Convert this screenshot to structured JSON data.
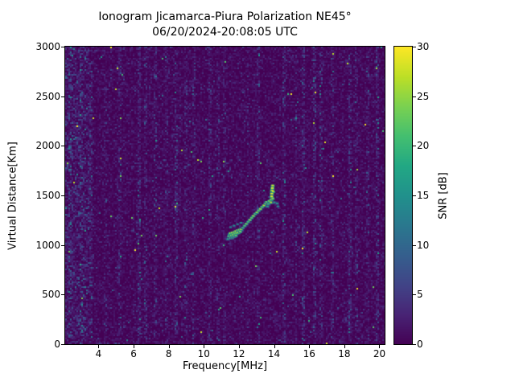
{
  "chart_data": {
    "type": "heatmap",
    "title": "Ionogram Jicamarca-Piura Polarization NE45°",
    "subtitle": "06/20/2024-20:08:05 UTC",
    "xlabel": "Frequency[MHz]",
    "ylabel": "Virtual Distance[Km]",
    "xlim": [
      2.1,
      20.3
    ],
    "ylim": [
      0,
      3000
    ],
    "xticks": [
      4,
      6,
      8,
      10,
      12,
      14,
      16,
      18,
      20
    ],
    "yticks": [
      0,
      500,
      1000,
      1500,
      2000,
      2500,
      3000
    ],
    "grid": false,
    "colorbar": {
      "label": "SNR [dB]",
      "min": 0,
      "max": 30,
      "ticks": [
        0,
        5,
        10,
        15,
        20,
        25,
        30
      ],
      "position": "right"
    },
    "colormap": {
      "name": "viridis",
      "stops": [
        [
          0.0,
          "#440154"
        ],
        [
          0.1,
          "#482475"
        ],
        [
          0.2,
          "#414487"
        ],
        [
          0.3,
          "#355f8d"
        ],
        [
          0.4,
          "#2a788e"
        ],
        [
          0.5,
          "#21918c"
        ],
        [
          0.6,
          "#22a884"
        ],
        [
          0.7,
          "#44bf70"
        ],
        [
          0.8,
          "#7ad151"
        ],
        [
          0.9,
          "#bddf26"
        ],
        [
          1.0,
          "#fde725"
        ]
      ],
      "background_value_color": "#440154"
    },
    "noise": {
      "base_mean_db": 1.0,
      "low_freq_boost_below_mhz": 3.6,
      "low_freq_boost_db": 1.2,
      "speckle_probability": 0.0025,
      "rfi_stripes": [
        {
          "freq": 2.35,
          "mean_db": 3.5,
          "width": 0.1
        },
        {
          "freq": 2.6,
          "mean_db": 2.0,
          "width": 0.08
        },
        {
          "freq": 2.95,
          "mean_db": 3.0,
          "width": 0.08
        },
        {
          "freq": 3.3,
          "mean_db": 1.8,
          "width": 0.08
        },
        {
          "freq": 4.35,
          "mean_db": 1.6,
          "width": 0.08
        },
        {
          "freq": 5.15,
          "mean_db": 1.8,
          "width": 0.08
        },
        {
          "freq": 6.3,
          "mean_db": 2.6,
          "width": 0.08
        },
        {
          "freq": 6.65,
          "mean_db": 2.2,
          "width": 0.08
        },
        {
          "freq": 7.2,
          "mean_db": 2.0,
          "width": 0.08
        },
        {
          "freq": 7.8,
          "mean_db": 1.6,
          "width": 0.08
        },
        {
          "freq": 8.35,
          "mean_db": 2.4,
          "width": 0.08
        },
        {
          "freq": 8.9,
          "mean_db": 1.8,
          "width": 0.08
        },
        {
          "freq": 9.4,
          "mean_db": 1.6,
          "width": 0.08
        },
        {
          "freq": 10.3,
          "mean_db": 2.2,
          "width": 0.08
        },
        {
          "freq": 10.75,
          "mean_db": 1.8,
          "width": 0.08
        },
        {
          "freq": 11.1,
          "mean_db": 1.6,
          "width": 0.08
        },
        {
          "freq": 12.45,
          "mean_db": 1.8,
          "width": 0.08
        },
        {
          "freq": 13.05,
          "mean_db": 2.0,
          "width": 0.08
        },
        {
          "freq": 14.5,
          "mean_db": 2.2,
          "width": 0.08
        },
        {
          "freq": 15.2,
          "mean_db": 1.8,
          "width": 0.08
        },
        {
          "freq": 15.65,
          "mean_db": 2.4,
          "width": 0.08
        },
        {
          "freq": 16.25,
          "mean_db": 2.6,
          "width": 0.1
        },
        {
          "freq": 16.6,
          "mean_db": 2.0,
          "width": 0.08
        },
        {
          "freq": 17.3,
          "mean_db": 1.8,
          "width": 0.08
        },
        {
          "freq": 18.25,
          "mean_db": 2.2,
          "width": 0.08
        },
        {
          "freq": 18.65,
          "mean_db": 1.8,
          "width": 0.08
        },
        {
          "freq": 19.3,
          "mean_db": 2.0,
          "width": 0.08
        },
        {
          "freq": 19.85,
          "mean_db": 2.4,
          "width": 0.08
        }
      ]
    },
    "echo_trace_points": [
      [
        11.35,
        1060,
        18
      ],
      [
        11.4,
        1090,
        22
      ],
      [
        11.45,
        1110,
        25
      ],
      [
        11.5,
        1070,
        20
      ],
      [
        11.5,
        1120,
        27
      ],
      [
        11.55,
        1095,
        24
      ],
      [
        11.6,
        1125,
        28
      ],
      [
        11.6,
        1075,
        19
      ],
      [
        11.65,
        1105,
        26
      ],
      [
        11.7,
        1130,
        27
      ],
      [
        11.7,
        1085,
        21
      ],
      [
        11.75,
        1115,
        25
      ],
      [
        11.8,
        1140,
        28
      ],
      [
        11.8,
        1095,
        22
      ],
      [
        11.85,
        1120,
        26
      ],
      [
        11.9,
        1150,
        24
      ],
      [
        11.95,
        1125,
        27
      ],
      [
        12.0,
        1155,
        25
      ],
      [
        12.05,
        1135,
        23
      ],
      [
        12.1,
        1160,
        26
      ],
      [
        11.5,
        1180,
        14
      ],
      [
        11.7,
        1195,
        15
      ],
      [
        11.9,
        1210,
        14
      ],
      [
        12.1,
        1225,
        15
      ],
      [
        12.2,
        1175,
        20
      ],
      [
        12.3,
        1195,
        22
      ],
      [
        12.4,
        1215,
        24
      ],
      [
        12.5,
        1235,
        21
      ],
      [
        12.6,
        1255,
        25
      ],
      [
        12.7,
        1275,
        23
      ],
      [
        12.8,
        1295,
        26
      ],
      [
        12.9,
        1315,
        22
      ],
      [
        13.0,
        1330,
        25
      ],
      [
        13.1,
        1350,
        24
      ],
      [
        13.2,
        1365,
        26
      ],
      [
        13.3,
        1385,
        23
      ],
      [
        13.4,
        1400,
        27
      ],
      [
        13.5,
        1420,
        25
      ],
      [
        13.55,
        1435,
        22
      ],
      [
        13.6,
        1390,
        18
      ],
      [
        13.65,
        1415,
        20
      ],
      [
        13.7,
        1445,
        24
      ],
      [
        13.8,
        1430,
        26
      ],
      [
        13.82,
        1460,
        28
      ],
      [
        13.84,
        1490,
        29
      ],
      [
        13.85,
        1520,
        30
      ],
      [
        13.86,
        1550,
        29
      ],
      [
        13.88,
        1575,
        30
      ],
      [
        13.9,
        1600,
        28
      ],
      [
        13.9,
        1470,
        25
      ],
      [
        13.92,
        1540,
        27
      ],
      [
        14.0,
        1430,
        17
      ],
      [
        14.15,
        1420,
        16
      ],
      [
        14.2,
        1390,
        15
      ]
    ]
  }
}
